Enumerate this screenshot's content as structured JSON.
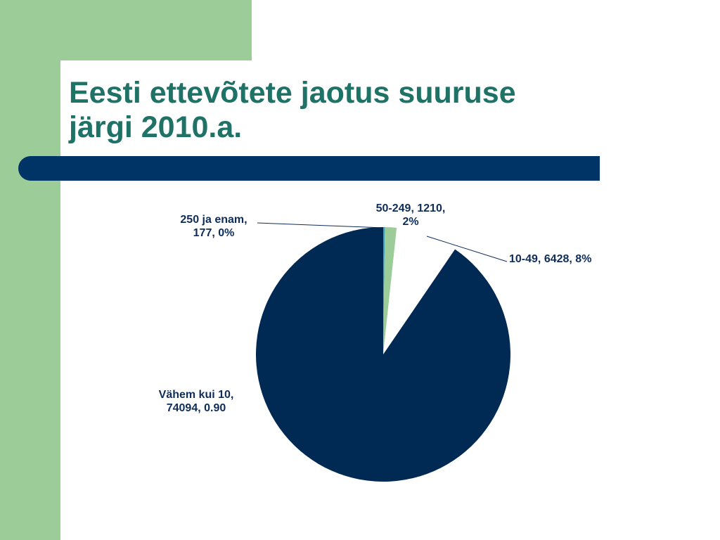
{
  "slide": {
    "title_line1": "Eesti ettevõtete jaotus suuruse",
    "title_line2": "järgi 2010.a."
  },
  "colors": {
    "accent_green": "#9ccc98",
    "title_teal": "#1e7266",
    "rule_navy": "#003366"
  },
  "chart_data": {
    "type": "pie",
    "slices": [
      {
        "category": "250 ja enam",
        "value": 177,
        "pct_label": "0%",
        "color": "#3fa3b5",
        "label_lines": [
          "250 ja enam,",
          "177, 0%"
        ]
      },
      {
        "category": "50-249",
        "value": 1210,
        "pct_label": "2%",
        "color": "#9ccc98",
        "label_lines": [
          "50-249, 1210,",
          "2%"
        ]
      },
      {
        "category": "10-49",
        "value": 6428,
        "pct_label": "8%",
        "color": "#ffffff",
        "label_lines": [
          "10-49, 6428, 8%"
        ]
      },
      {
        "category": "Vähem kui 10",
        "value": 74094,
        "pct_label": "0.90",
        "color": "#002a54",
        "label_lines": [
          "Vähem kui 10,",
          "74094, 0.90"
        ]
      }
    ]
  }
}
